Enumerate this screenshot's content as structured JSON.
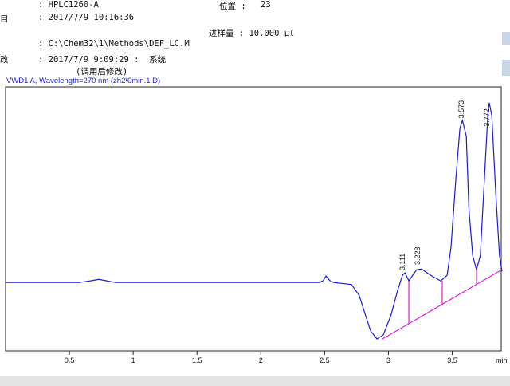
{
  "header": {
    "instrument": ": HPLC1260-A",
    "position_label": "位置 :",
    "position": 23,
    "date_key": "目",
    "date": ": 2017/7/9 10:16:36",
    "injection": "进样量 : 10.000 µl",
    "method": ": C:\\Chem32\\1\\Methods\\DEF_LC.M",
    "modified_key": "改",
    "modified": ": 2017/7/9 9:09:29 :  系统",
    "modified_note": "(调用后修改)"
  },
  "chart_data": {
    "type": "line",
    "title": "VWD1 A, Wavelength=270 nm (zh2\\0min.1.D)",
    "x_label": "min",
    "x": [
      0,
      0.33,
      0.58,
      0.68,
      0.73,
      0.78,
      0.86,
      1.05,
      1.21,
      1.83,
      2.46,
      2.49,
      2.51,
      2.54,
      2.57,
      2.71,
      2.77,
      2.82,
      2.86,
      2.91,
      2.96,
      3.02,
      3.07,
      3.11,
      3.13,
      3.16,
      3.19,
      3.22,
      3.26,
      3.33,
      3.41,
      3.46,
      3.49,
      3.53,
      3.56,
      3.58,
      3.61,
      3.63,
      3.66,
      3.69,
      3.72,
      3.75,
      3.78,
      3.79,
      3.81,
      3.84,
      3.87,
      3.89
    ],
    "series": [
      {
        "name": "VWD1 A",
        "color": "#1a1adb",
        "values": [
          0,
          0,
          0,
          1,
          1.6,
          1,
          0,
          0,
          0,
          0,
          0,
          1,
          3.3,
          1,
          0,
          -1,
          -6.5,
          -16.7,
          -24.8,
          -28.9,
          -26.8,
          -16.7,
          -4.5,
          3.7,
          4.9,
          0.8,
          3.7,
          6.5,
          6.9,
          3.7,
          0.8,
          3.7,
          17.9,
          54.5,
          78.9,
          82.9,
          74.8,
          38.2,
          13.8,
          6.5,
          13.8,
          50.4,
          87,
          91.9,
          85.4,
          46.7,
          13.8,
          5.7
        ]
      }
    ],
    "peak_labels": [
      3.111,
      3.228,
      3.573,
      3.772
    ],
    "xlim": [
      0,
      3.89
    ],
    "xticks": [
      0.5,
      1,
      1.5,
      2,
      2.5,
      3,
      3.5
    ],
    "ylim": [
      -35,
      100
    ]
  }
}
